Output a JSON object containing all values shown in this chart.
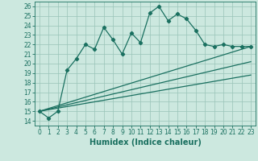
{
  "xlabel": "Humidex (Indice chaleur)",
  "bg_color": "#cce8df",
  "line_color": "#1a7060",
  "grid_color": "#99c4b8",
  "xlim": [
    -0.5,
    23.5
  ],
  "ylim": [
    13.5,
    26.5
  ],
  "xticks": [
    0,
    1,
    2,
    3,
    4,
    5,
    6,
    7,
    8,
    9,
    10,
    11,
    12,
    13,
    14,
    15,
    16,
    17,
    18,
    19,
    20,
    21,
    22,
    23
  ],
  "yticks": [
    14,
    15,
    16,
    17,
    18,
    19,
    20,
    21,
    22,
    23,
    24,
    25,
    26
  ],
  "main_x": [
    0,
    1,
    2,
    3,
    4,
    5,
    6,
    7,
    8,
    9,
    10,
    11,
    12,
    13,
    14,
    15,
    16,
    17,
    18,
    19,
    20,
    21,
    22,
    23
  ],
  "main_y": [
    15.0,
    14.3,
    15.0,
    19.3,
    20.5,
    22.0,
    21.5,
    23.8,
    22.5,
    21.0,
    23.2,
    22.2,
    25.3,
    26.0,
    24.5,
    25.2,
    24.7,
    23.5,
    22.0,
    21.8,
    22.0,
    21.8,
    21.8,
    21.8
  ],
  "line1_x": [
    0,
    23
  ],
  "line1_y": [
    15.0,
    21.8
  ],
  "line2_x": [
    0,
    23
  ],
  "line2_y": [
    15.0,
    20.2
  ],
  "line3_x": [
    0,
    23
  ],
  "line3_y": [
    15.0,
    18.8
  ],
  "marker": "D",
  "markersize": 2.2,
  "linewidth": 0.9,
  "xlabel_fontsize": 7,
  "tick_fontsize": 5.5
}
